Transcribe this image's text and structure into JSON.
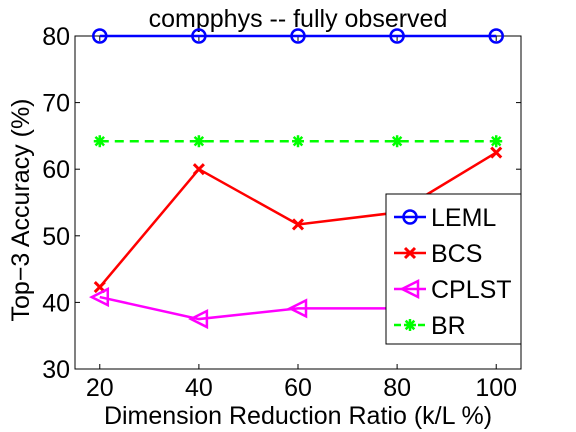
{
  "chart_data": {
    "type": "line",
    "title": "compphys -- fully observed",
    "xlabel": "Dimension Reduction Ratio (k/L %)",
    "ylabel": "Top−3 Accuracy (%)",
    "x": [
      20,
      40,
      60,
      80,
      100
    ],
    "x_ticks": [
      "20",
      "40",
      "60",
      "80",
      "100"
    ],
    "y_ticks": [
      "30",
      "40",
      "50",
      "60",
      "70",
      "80"
    ],
    "xlim": [
      15,
      105
    ],
    "ylim": [
      30,
      80
    ],
    "grid": false,
    "legend_position": "bottom-right",
    "series": [
      {
        "name": "LEML",
        "values": [
          80,
          80,
          80,
          80,
          80
        ],
        "color": "#0000ff",
        "marker": "circle",
        "dash": "solid"
      },
      {
        "name": "BCS",
        "values": [
          42.3,
          60,
          51.7,
          53.5,
          62.5
        ],
        "color": "#ff0000",
        "marker": "x",
        "dash": "solid"
      },
      {
        "name": "CPLST",
        "values": [
          40.8,
          37.5,
          39.1,
          39.1,
          39.1
        ],
        "color": "#ff00ff",
        "marker": "triangle-left",
        "dash": "solid"
      },
      {
        "name": "BR",
        "values": [
          64.2,
          64.2,
          64.2,
          64.2,
          64.2
        ],
        "color": "#00ff00",
        "marker": "asterisk",
        "dash": "dashed"
      }
    ]
  }
}
